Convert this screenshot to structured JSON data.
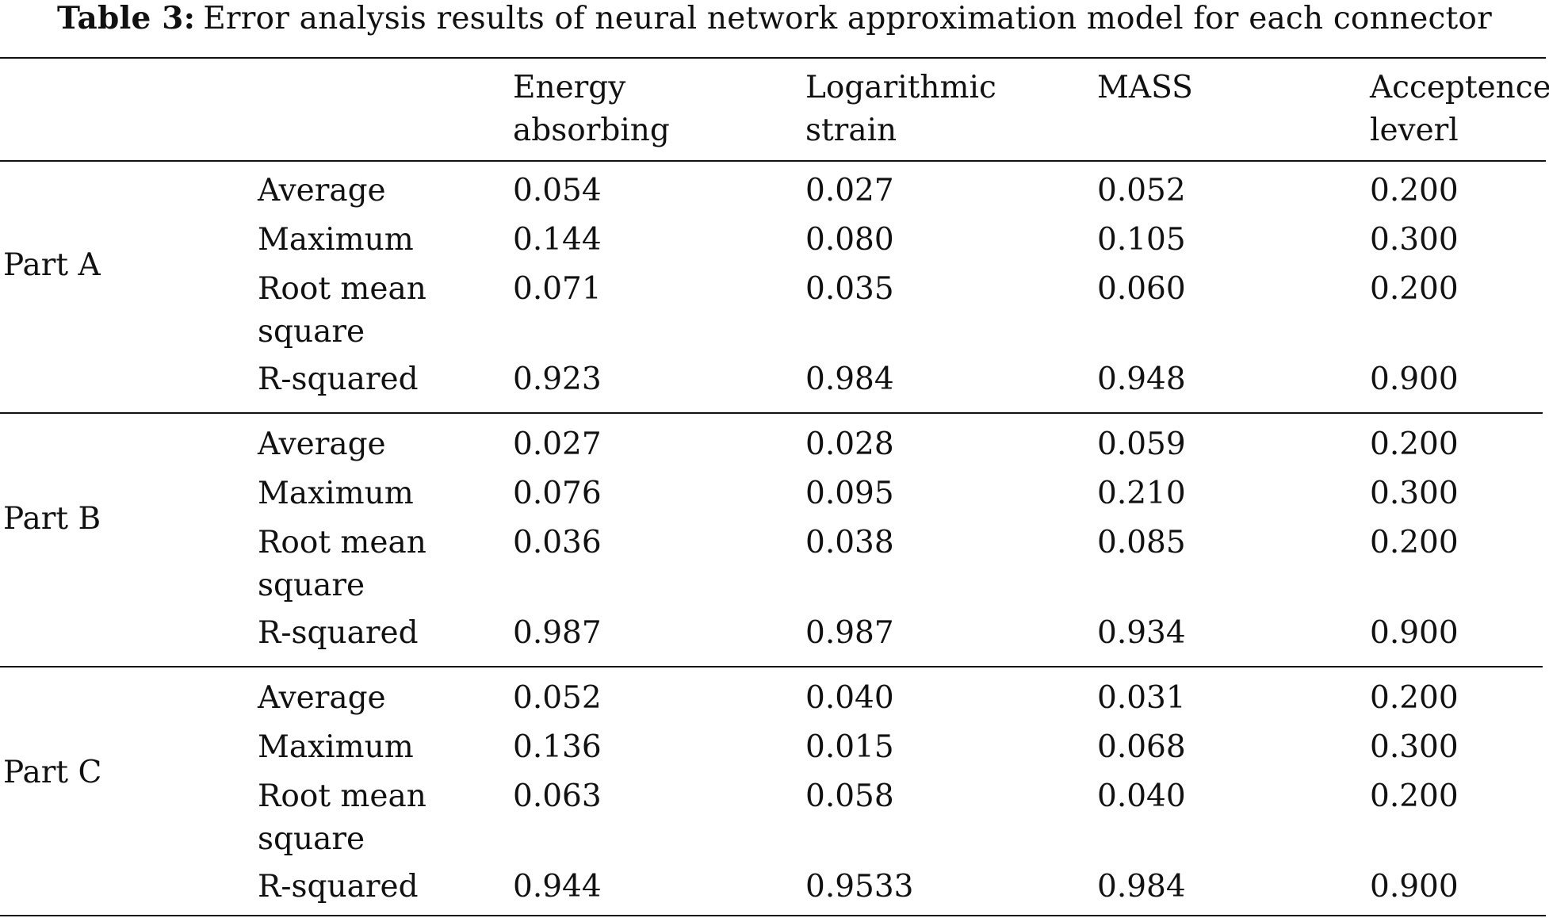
{
  "caption": {
    "label": "Table 3:",
    "text": "Error analysis results of neural network approximation model for each connector"
  },
  "table": {
    "columns": [
      {
        "line1": "",
        "line2": ""
      },
      {
        "line1": "",
        "line2": ""
      },
      {
        "line1": "Energy",
        "line2": "absorbing"
      },
      {
        "line1": "Logarithmic",
        "line2": "strain"
      },
      {
        "line1": "MASS",
        "line2": ""
      },
      {
        "line1": "Acceptence",
        "line2": "leverl"
      }
    ],
    "groups": [
      {
        "part": "Part A",
        "rows": [
          {
            "metric": [
              "Average"
            ],
            "values": [
              "0.054",
              "0.027",
              "0.052",
              "0.200"
            ]
          },
          {
            "metric": [
              "Maximum"
            ],
            "values": [
              "0.144",
              "0.080",
              "0.105",
              "0.300"
            ]
          },
          {
            "metric": [
              "Root mean",
              "square"
            ],
            "values": [
              "0.071",
              "0.035",
              "0.060",
              "0.200"
            ]
          },
          {
            "metric": [
              "R-squared"
            ],
            "values": [
              "0.923",
              "0.984",
              "0.948",
              "0.900"
            ]
          }
        ]
      },
      {
        "part": "Part B",
        "rows": [
          {
            "metric": [
              "Average"
            ],
            "values": [
              "0.027",
              "0.028",
              "0.059",
              "0.200"
            ]
          },
          {
            "metric": [
              "Maximum"
            ],
            "values": [
              "0.076",
              "0.095",
              "0.210",
              "0.300"
            ]
          },
          {
            "metric": [
              "Root mean",
              "square"
            ],
            "values": [
              "0.036",
              "0.038",
              "0.085",
              "0.200"
            ]
          },
          {
            "metric": [
              "R-squared"
            ],
            "values": [
              "0.987",
              "0.987",
              "0.934",
              "0.900"
            ]
          }
        ]
      },
      {
        "part": "Part C",
        "rows": [
          {
            "metric": [
              "Average"
            ],
            "values": [
              "0.052",
              "0.040",
              "0.031",
              "0.200"
            ]
          },
          {
            "metric": [
              "Maximum"
            ],
            "values": [
              "0.136",
              "0.015",
              "0.068",
              "0.300"
            ]
          },
          {
            "metric": [
              "Root mean",
              "square"
            ],
            "values": [
              "0.063",
              "0.058",
              "0.040",
              "0.200"
            ]
          },
          {
            "metric": [
              "R-squared"
            ],
            "values": [
              "0.944",
              "0.9533",
              "0.984",
              "0.900"
            ]
          }
        ]
      }
    ]
  }
}
